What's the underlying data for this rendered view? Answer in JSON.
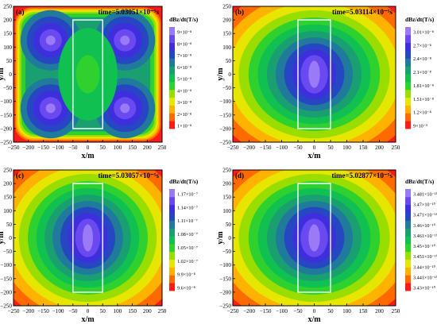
{
  "chart_data": [
    {
      "type": "heatmap",
      "panel_label": "(a)",
      "time_label": "time=5.03051×10⁻⁵s",
      "legend_title": "dBz/dt(T/s)",
      "xlabel": "x/m",
      "ylabel": "y/m",
      "xlim": [
        -250,
        250
      ],
      "ylim": [
        -250,
        250
      ],
      "x_ticks": [
        "−250",
        "−200",
        "−150",
        "−100",
        "−50",
        "0",
        "50",
        "100",
        "150",
        "200",
        "250"
      ],
      "y_ticks": [
        "250",
        "200",
        "150",
        "100",
        "50",
        "0",
        "−50",
        "−100",
        "−150",
        "−200",
        "−250"
      ],
      "legend_entries": [
        "9×10⁻⁸",
        "8×10⁻⁸",
        "7×10⁻⁸",
        "6×10⁻⁸",
        "5×10⁻⁸",
        "4×10⁻⁸",
        "3×10⁻⁸",
        "2×10⁻⁸",
        "1×10⁻⁸"
      ],
      "colorscale": [
        "#ff1a1a",
        "#ff6a00",
        "#ffb300",
        "#e6e600",
        "#9ade00",
        "#2ed12e",
        "#10c050",
        "#1aa070",
        "#1f7a9c",
        "#2747c2",
        "#3d2fdc",
        "#6a4af0",
        "#9a7af7"
      ],
      "source_rectangle": {
        "x_min": -50,
        "x_max": 50,
        "y_min": -200,
        "y_max": 200
      },
      "pattern": "four-lobe",
      "peaks_xy": [
        [
          -125,
          125
        ],
        [
          125,
          125
        ],
        [
          -125,
          -125
        ],
        [
          125,
          -125
        ]
      ],
      "center_value_level": "5×10⁻⁸",
      "edge_value_level": "1×10⁻⁸"
    },
    {
      "type": "heatmap",
      "panel_label": "(b)",
      "time_label": "time=5.03114×10⁻⁵s",
      "legend_title": "dBz/dt(T/s)",
      "xlabel": "x/m",
      "ylabel": "y/m",
      "xlim": [
        -250,
        250
      ],
      "ylim": [
        -250,
        250
      ],
      "x_ticks": [
        "−250",
        "−200",
        "−150",
        "−100",
        "−50",
        "0",
        "50",
        "100",
        "150",
        "200",
        "250"
      ],
      "y_ticks": [
        "250",
        "200",
        "150",
        "100",
        "50",
        "0",
        "−50",
        "−100",
        "−150",
        "−200",
        "−250"
      ],
      "legend_entries": [
        "3.01×10⁻⁸",
        "2.7×10⁻⁸",
        "2.4×10⁻⁸",
        "2.1×10⁻⁸",
        "1.81×10⁻⁸",
        "1.51×10⁻⁸",
        "1.2×10⁻⁸",
        "9×10⁻⁹"
      ],
      "colorscale": [
        "#ff1a1a",
        "#ff6a00",
        "#ffb300",
        "#e6e600",
        "#9ade00",
        "#2ed12e",
        "#10c050",
        "#1aa070",
        "#1f7a9c",
        "#2747c2",
        "#3d2fdc",
        "#6a4af0",
        "#9a7af7"
      ],
      "source_rectangle": {
        "x_min": -50,
        "x_max": 50,
        "y_min": -200,
        "y_max": 200
      },
      "pattern": "central-ellipse",
      "peak_xy": [
        0,
        0
      ]
    },
    {
      "type": "heatmap",
      "panel_label": "(c)",
      "time_label": "time=5.03057×10⁻⁵s",
      "legend_title": "dBz/dt(T/s)",
      "xlabel": "x/m",
      "ylabel": "y/m",
      "xlim": [
        -250,
        250
      ],
      "ylim": [
        -250,
        250
      ],
      "x_ticks": [
        "−250",
        "−200",
        "−150",
        "−100",
        "−50",
        "0",
        "50",
        "100",
        "150",
        "200",
        "250"
      ],
      "y_ticks": [
        "250",
        "200",
        "150",
        "100",
        "50",
        "0",
        "−50",
        "−100",
        "−150",
        "−200",
        "−250"
      ],
      "legend_entries": [
        "1.17×10⁻⁷",
        "1.14×10⁻⁷",
        "1.11×10⁻⁷",
        "1.08×10⁻⁷",
        "1.05×10⁻⁷",
        "1.02×10⁻⁷",
        "9.9×10⁻⁸",
        "9.6×10⁻⁸"
      ],
      "colorscale": [
        "#ff1a1a",
        "#ff6a00",
        "#ffb300",
        "#e6e600",
        "#9ade00",
        "#2ed12e",
        "#10c050",
        "#1aa070",
        "#1f7a9c",
        "#2747c2",
        "#3d2fdc",
        "#6a4af0",
        "#9a7af7"
      ],
      "source_rectangle": {
        "x_min": -50,
        "x_max": 50,
        "y_min": -200,
        "y_max": 200
      },
      "pattern": "central-ellipse",
      "peak_xy": [
        0,
        0
      ]
    },
    {
      "type": "heatmap",
      "panel_label": "(d)",
      "time_label": "time=5.02877×10⁻⁵s",
      "legend_title": "dBz/dt(T/s)",
      "xlabel": "x/m",
      "ylabel": "y/m",
      "xlim": [
        -250,
        250
      ],
      "ylim": [
        -250,
        250
      ],
      "x_ticks": [
        "−250",
        "−200",
        "−150",
        "−100",
        "−50",
        "0",
        "50",
        "100",
        "150",
        "200",
        "250"
      ],
      "y_ticks": [
        "250",
        "200",
        "150",
        "100",
        "50",
        "0",
        "−50",
        "−100",
        "−150",
        "−200",
        "−250"
      ],
      "legend_entries": [
        "3.481×10⁻¹⁰",
        "3.47×10⁻¹⁰",
        "3.471×10⁻¹⁰",
        "3.46×10⁻¹⁰",
        "3.461×10⁻¹⁰",
        "3.45×10⁻¹⁰",
        "3.451×10⁻¹⁰",
        "3.44×10⁻¹⁰",
        "3.441×10⁻¹⁰",
        "3.43×10⁻¹⁰"
      ],
      "colorscale": [
        "#ff1a1a",
        "#ff6a00",
        "#ffb300",
        "#e6e600",
        "#9ade00",
        "#2ed12e",
        "#10c050",
        "#1aa070",
        "#1f7a9c",
        "#2747c2",
        "#3d2fdc",
        "#6a4af0",
        "#9a7af7"
      ],
      "source_rectangle": {
        "x_min": -50,
        "x_max": 50,
        "y_min": -200,
        "y_max": 200
      },
      "pattern": "central-ellipse",
      "peak_xy": [
        0,
        0
      ]
    }
  ]
}
